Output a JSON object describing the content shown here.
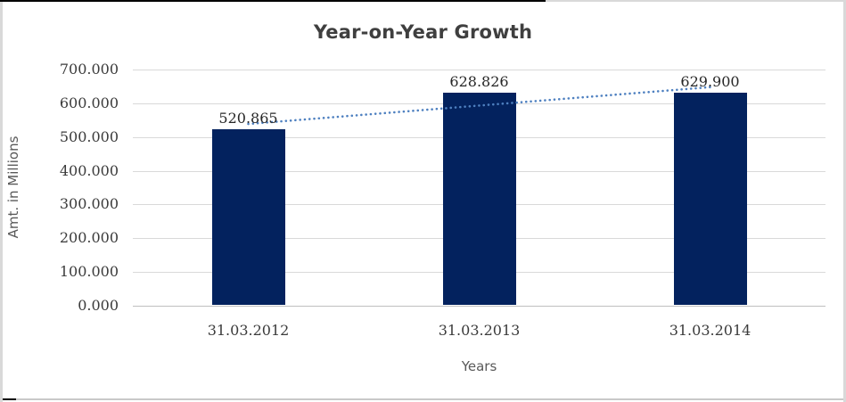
{
  "chart_data": {
    "type": "bar",
    "title": "Year-on-Year Growth",
    "categories": [
      "31.03.2012",
      "31.03.2013",
      "31.03.2014"
    ],
    "values": [
      520.865,
      628.826,
      629.9
    ],
    "value_labels": [
      "520.865",
      "628.826",
      "629.900"
    ],
    "xlabel": "Years",
    "ylabel": "Amt. in Millions",
    "ylim": [
      0,
      700
    ],
    "ytick_step": 100,
    "ytick_labels": [
      "700.000",
      "600.000",
      "500.000",
      "400.000",
      "300.000",
      "200.000",
      "100.000",
      "0.000"
    ],
    "grid": true,
    "legend": false,
    "trendline": true,
    "colors": {
      "bar": "#03225E",
      "trendline": "#4E80C0",
      "gridline": "#D9D9D9",
      "axis_line": "#BFBFBF",
      "title_text": "#3F3F3F",
      "tick_text": "#3B3B3B",
      "axis_title_text": "#595959",
      "data_label_text": "#262626",
      "background": "#FFFFFF"
    }
  }
}
